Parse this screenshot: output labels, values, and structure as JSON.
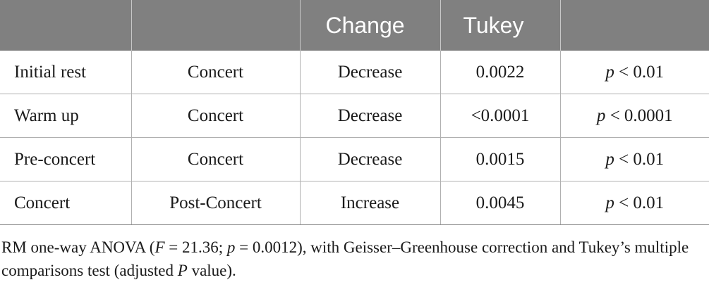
{
  "table": {
    "headers": [
      "",
      "",
      "Change",
      "Tukey",
      ""
    ],
    "rows": [
      {
        "from": "Initial rest",
        "to": "Concert",
        "change": "Decrease",
        "tukey": "0.0022",
        "p_label": "p",
        "p_value": "< 0.01"
      },
      {
        "from": "Warm up",
        "to": "Concert",
        "change": "Decrease",
        "tukey": "<0.0001",
        "p_label": "p",
        "p_value": "< 0.0001"
      },
      {
        "from": "Pre-concert",
        "to": "Concert",
        "change": "Decrease",
        "tukey": "0.0015",
        "p_label": "p",
        "p_value": "< 0.01"
      },
      {
        "from": "Concert",
        "to": "Post-Concert",
        "change": "Increase",
        "tukey": "0.0045",
        "p_label": "p",
        "p_value": "< 0.01"
      }
    ]
  },
  "footnote": {
    "part1": "RM one-way ANOVA (",
    "f_symbol": "F",
    "part2": " = 21.36; ",
    "p_symbol": "p",
    "part3": " = 0.0012), with Geisser–Greenhouse correction and Tukey’s multiple comparisons test (adjusted ",
    "P_symbol": "P",
    "part4": " value)."
  },
  "colors": {
    "header_bg": "#808080",
    "header_text": "#ffffff",
    "body_text": "#1a1a1a",
    "rule": "#b0b0b0"
  }
}
